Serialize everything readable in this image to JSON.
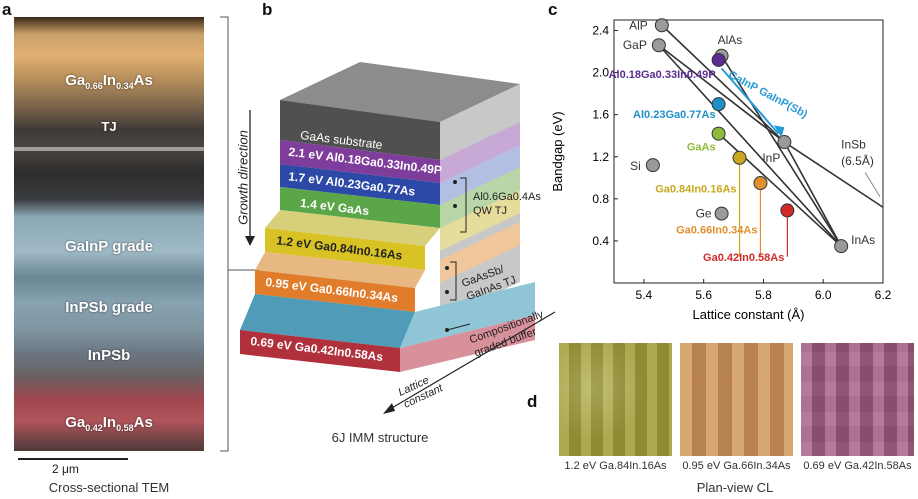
{
  "panel_a": {
    "letter": "a",
    "layers": [
      {
        "label_parts": [
          [
            "Ga",
            ""
          ],
          [
            "0.66",
            "sub"
          ],
          [
            "In",
            ""
          ],
          [
            "0.34",
            "sub"
          ],
          [
            "As",
            ""
          ]
        ]
      },
      {
        "label_parts": [
          [
            "TJ",
            ""
          ]
        ]
      },
      {
        "label_parts": [
          [
            "GaInP grade",
            ""
          ]
        ]
      },
      {
        "label_parts": [
          [
            "InPSb grade",
            ""
          ]
        ]
      },
      {
        "label_parts": [
          [
            "InPSb",
            ""
          ]
        ]
      },
      {
        "label_parts": [
          [
            "Ga",
            ""
          ],
          [
            "0.42",
            "sub"
          ],
          [
            "In",
            ""
          ],
          [
            "0.58",
            "sub"
          ],
          [
            "As",
            ""
          ]
        ]
      }
    ],
    "scale_bar": "2 μm",
    "caption": "Cross-sectional TEM"
  },
  "panel_b": {
    "letter": "b",
    "growth_direction": "Growth direction",
    "layers": [
      {
        "text": "GaAs substrate"
      },
      {
        "text": "2.1 eV Al0.18Ga0.33In0.49P"
      },
      {
        "text": "1.7 eV Al0.23Ga0.77As"
      },
      {
        "text": "1.4 eV GaAs"
      },
      {
        "text": "1.2 eV Ga0.84In0.16As"
      },
      {
        "text": "0.95 eV Ga0.66In0.34As"
      },
      {
        "text": "0.69 eV Ga0.42In0.58As"
      }
    ],
    "annotations": {
      "qw_tj_1": "Al0.6Ga0.4As",
      "qw_tj_2": "QW TJ",
      "gaassb_1": "GaAsSb/",
      "gaassb_2": "GaInAs TJ",
      "buffer_1": "Compositionally",
      "buffer_2": "graded buffer",
      "lattice_1": "Lattice",
      "lattice_2": "constant"
    },
    "caption": "6J IMM structure"
  },
  "panel_c": {
    "letter": "c",
    "chart_data": {
      "type": "scatter",
      "xlabel": "Lattice constant (Å)",
      "ylabel": "Bandgap (eV)",
      "xlim": [
        5.3,
        6.2
      ],
      "ylim": [
        0.0,
        2.5
      ],
      "x_ticks": [
        5.4,
        5.6,
        5.8,
        6.0,
        6.2
      ],
      "y_ticks": [
        0.4,
        0.8,
        1.2,
        1.6,
        2.0,
        2.4
      ],
      "binaries": [
        {
          "name": "AlP",
          "x": 5.46,
          "y": 2.45
        },
        {
          "name": "GaP",
          "x": 5.45,
          "y": 2.26
        },
        {
          "name": "AlAs",
          "x": 5.66,
          "y": 2.16
        },
        {
          "name": "Si",
          "x": 5.43,
          "y": 1.12
        },
        {
          "name": "Ge",
          "x": 5.66,
          "y": 0.66
        },
        {
          "name": "InP",
          "x": 5.87,
          "y": 1.34
        },
        {
          "name": "InAs",
          "x": 6.06,
          "y": 0.35
        }
      ],
      "alloys": [
        {
          "name": "Al0.18Ga0.33In0.49P",
          "x": 5.65,
          "y": 2.12,
          "color": "#5b2d8e"
        },
        {
          "name": "Al0.23Ga0.77As",
          "x": 5.65,
          "y": 1.7,
          "color": "#1f8fc9"
        },
        {
          "name": "GaAs",
          "x": 5.65,
          "y": 1.42,
          "color": "#8dbb3c"
        },
        {
          "name": "Ga0.84In0.16As",
          "x": 5.72,
          "y": 1.19,
          "color": "#c9a81e"
        },
        {
          "name": "Ga0.66In0.34As",
          "x": 5.79,
          "y": 0.95,
          "color": "#e0902e"
        },
        {
          "name": "Ga0.42In0.58As",
          "x": 5.88,
          "y": 0.69,
          "color": "#d22a2a"
        }
      ],
      "insb_label": "InSb",
      "insb_sub": "(6.5Å)",
      "arrow_label": "GaInP GaInP(Sb)"
    }
  },
  "panel_d": {
    "letter": "d",
    "images": [
      {
        "caption": "1.2 eV Ga.84In.16As",
        "color": "#9a9638"
      },
      {
        "caption": "0.95 eV Ga.66In.34As",
        "color": "#c9905a"
      },
      {
        "caption": "0.69 eV Ga.42In.58As",
        "color": "#9a5a7e"
      }
    ],
    "caption": "Plan-view CL"
  }
}
